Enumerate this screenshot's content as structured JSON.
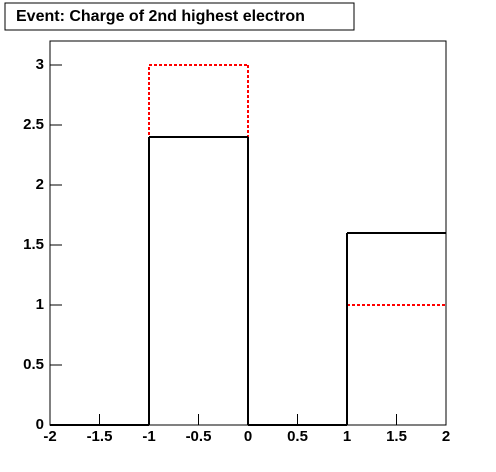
{
  "chart_data": {
    "type": "histogram",
    "title": "Event: Charge of 2nd highest electron",
    "bins": [
      -2,
      -1,
      0,
      1,
      2
    ],
    "series": [
      {
        "color": "#ff0000",
        "dashed": true,
        "values": [
          0,
          3,
          0,
          1
        ]
      },
      {
        "color": "#000000",
        "dashed": false,
        "values": [
          0,
          2.4,
          0,
          1.6
        ]
      }
    ],
    "xlim": [
      -2,
      2
    ],
    "xticks": [
      -2,
      -1.5,
      -1,
      -0.5,
      0,
      0.5,
      1,
      1.5,
      2
    ],
    "ylim": [
      0,
      3.2
    ],
    "yticks": [
      0,
      0.5,
      1,
      1.5,
      2,
      2.5,
      3
    ]
  }
}
